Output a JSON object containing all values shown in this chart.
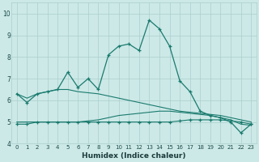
{
  "x": [
    0,
    1,
    2,
    3,
    4,
    5,
    6,
    7,
    8,
    9,
    10,
    11,
    12,
    13,
    14,
    15,
    16,
    17,
    18,
    19,
    20,
    21,
    22,
    23
  ],
  "line1_main": [
    6.3,
    5.9,
    6.3,
    6.4,
    6.5,
    7.3,
    6.6,
    7.0,
    6.5,
    8.1,
    8.5,
    8.6,
    8.3,
    9.7,
    9.3,
    8.5,
    6.9,
    6.4,
    5.5,
    5.3,
    5.2,
    5.0,
    4.5,
    4.9
  ],
  "line2_flat": [
    4.9,
    4.9,
    5.0,
    5.0,
    5.0,
    5.0,
    5.0,
    5.0,
    5.0,
    5.0,
    5.0,
    5.0,
    5.0,
    5.0,
    5.0,
    5.0,
    5.05,
    5.1,
    5.1,
    5.1,
    5.1,
    5.05,
    5.0,
    4.9
  ],
  "line3_descend": [
    6.3,
    6.1,
    6.3,
    6.4,
    6.5,
    6.5,
    6.4,
    6.35,
    6.3,
    6.2,
    6.1,
    6.0,
    5.9,
    5.8,
    5.7,
    5.6,
    5.5,
    5.45,
    5.4,
    5.35,
    5.3,
    5.2,
    5.1,
    5.0
  ],
  "line4_mid": [
    5.0,
    5.0,
    5.0,
    5.0,
    5.0,
    5.0,
    5.0,
    5.05,
    5.1,
    5.2,
    5.3,
    5.35,
    5.4,
    5.45,
    5.5,
    5.5,
    5.45,
    5.4,
    5.35,
    5.3,
    5.2,
    5.1,
    4.9,
    4.85
  ],
  "line_color": "#1a7a6e",
  "bg_color": "#cce9e7",
  "grid_color": "#aacfcc",
  "xlabel": "Humidex (Indice chaleur)",
  "ylim": [
    4.0,
    10.5
  ],
  "xlim": [
    -0.5,
    23.5
  ],
  "yticks": [
    4,
    5,
    6,
    7,
    8,
    9,
    10
  ],
  "xticks": [
    0,
    1,
    2,
    3,
    4,
    5,
    6,
    7,
    8,
    9,
    10,
    11,
    12,
    13,
    14,
    15,
    16,
    17,
    18,
    19,
    20,
    21,
    22,
    23
  ]
}
